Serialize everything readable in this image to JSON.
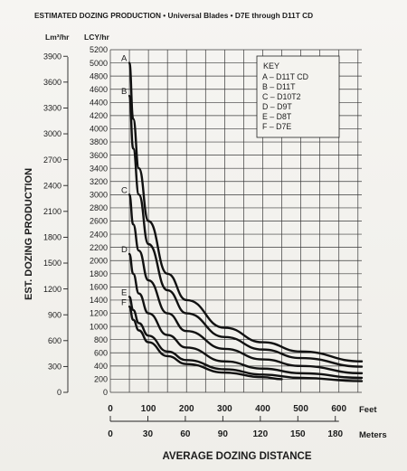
{
  "chart_data": {
    "type": "line",
    "title": "ESTIMATED DOZING PRODUCTION • Universal Blades • D7E through D11T CD",
    "ylabel": "EST. DOZING PRODUCTION",
    "xlabel": "AVERAGE DOZING DISTANCE",
    "y_unit_left": "Lm³/hr",
    "y_unit_right": "LCY/hr",
    "x_unit_feet": "Feet",
    "x_unit_meters": "Meters",
    "xlim_feet": [
      0,
      660
    ],
    "ylim_lcy": [
      0,
      5200
    ],
    "x_ticks_feet": [
      "0",
      "100",
      "200",
      "300",
      "400",
      "500",
      "600"
    ],
    "x_ticks_meters": [
      "0",
      "30",
      "60",
      "90",
      "120",
      "150",
      "180"
    ],
    "y_ticks_lcy": [
      "0",
      "200",
      "400",
      "600",
      "800",
      "1000",
      "1200",
      "1400",
      "1600",
      "1800",
      "2000",
      "2200",
      "2400",
      "2600",
      "2800",
      "3000",
      "3200",
      "3400",
      "3600",
      "3800",
      "4000",
      "4200",
      "4400",
      "4600",
      "4800",
      "5000",
      "5200"
    ],
    "y_ticks_m3": [
      "0",
      "300",
      "600",
      "900",
      "1200",
      "1500",
      "1800",
      "2100",
      "2400",
      "2700",
      "3000",
      "3300",
      "3600",
      "3900"
    ],
    "grid": true,
    "legend_title": "KEY",
    "legend_position": "top-right",
    "series": [
      {
        "name": "D11T CD",
        "label": "A",
        "x": [
          50,
          60,
          75,
          100,
          150,
          200,
          300,
          400,
          500,
          660
        ],
        "y": [
          5000,
          4150,
          3400,
          2600,
          1800,
          1400,
          980,
          760,
          620,
          470
        ]
      },
      {
        "name": "D11T",
        "label": "B",
        "x": [
          50,
          60,
          75,
          100,
          150,
          200,
          300,
          400,
          500,
          660
        ],
        "y": [
          4500,
          3700,
          3000,
          2250,
          1550,
          1200,
          840,
          650,
          520,
          390
        ]
      },
      {
        "name": "D10T2",
        "label": "C",
        "x": [
          50,
          60,
          75,
          100,
          150,
          200,
          300,
          400,
          500,
          660
        ],
        "y": [
          3000,
          2550,
          2150,
          1700,
          1200,
          930,
          660,
          500,
          400,
          290
        ]
      },
      {
        "name": "D9T",
        "label": "D",
        "x": [
          50,
          60,
          75,
          100,
          150,
          200,
          300,
          400,
          500,
          660
        ],
        "y": [
          2100,
          1800,
          1500,
          1200,
          870,
          680,
          470,
          360,
          290,
          220
        ]
      },
      {
        "name": "D8T",
        "label": "E",
        "x": [
          50,
          60,
          75,
          100,
          150,
          200,
          300,
          400,
          500,
          660
        ],
        "y": [
          1450,
          1250,
          1050,
          860,
          620,
          490,
          350,
          270,
          220,
          170
        ]
      },
      {
        "name": "D7E",
        "label": "F",
        "x": [
          50,
          60,
          75,
          100,
          150,
          200,
          300,
          400,
          450
        ],
        "y": [
          1300,
          1100,
          940,
          760,
          550,
          430,
          300,
          230,
          200
        ]
      }
    ],
    "legend_entries": [
      "A – D11T CD",
      "B – D11T",
      "C – D10T2",
      "D – D9T",
      "E – D8T",
      "F – D7E"
    ]
  }
}
